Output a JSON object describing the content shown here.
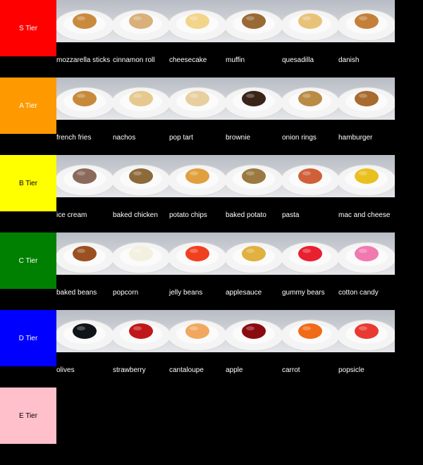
{
  "tiers": [
    {
      "label": "S Tier",
      "color": "#ff0000",
      "items": [
        {
          "name": "mozzarella sticks",
          "icon": "mozzarella-sticks-icon",
          "food": "#c98a3e"
        },
        {
          "name": "cinnamon roll",
          "icon": "cinnamon-roll-icon",
          "food": "#d9b07a"
        },
        {
          "name": "cheesecake",
          "icon": "cheesecake-icon",
          "food": "#f2d58a"
        },
        {
          "name": "muffin",
          "icon": "muffin-icon",
          "food": "#9a6a34"
        },
        {
          "name": "quesadilla",
          "icon": "quesadilla-icon",
          "food": "#e9c27a"
        },
        {
          "name": "danish",
          "icon": "danish-icon",
          "food": "#c4803a"
        }
      ]
    },
    {
      "label": "A Tier",
      "color": "#ff9900",
      "items": [
        {
          "name": "french fries",
          "icon": "french-fries-icon",
          "food": "#c78a3a"
        },
        {
          "name": "nachos",
          "icon": "nachos-icon",
          "food": "#e6c98e"
        },
        {
          "name": "pop tart",
          "icon": "pop-tart-icon",
          "food": "#e8cfa0"
        },
        {
          "name": "brownie",
          "icon": "brownie-icon",
          "food": "#3a2418"
        },
        {
          "name": "onion rings",
          "icon": "onion-rings-icon",
          "food": "#b98b45"
        },
        {
          "name": "hamburger",
          "icon": "hamburger-icon",
          "food": "#a86a2e"
        }
      ]
    },
    {
      "label": "B Tier",
      "color": "#ffff00",
      "items": [
        {
          "name": "ice cream",
          "icon": "ice-cream-icon",
          "food": "#8a6a5a"
        },
        {
          "name": "baked chicken",
          "icon": "baked-chicken-icon",
          "food": "#8c6a3a"
        },
        {
          "name": "potato chips",
          "icon": "potato-chips-icon",
          "food": "#e0a040"
        },
        {
          "name": "baked potato",
          "icon": "baked-potato-icon",
          "food": "#9a7a40"
        },
        {
          "name": "pasta",
          "icon": "pasta-icon",
          "food": "#d0603a"
        },
        {
          "name": "mac and cheese",
          "icon": "mac-and-cheese-icon",
          "food": "#e8c020"
        }
      ]
    },
    {
      "label": "C Tier",
      "color": "#008000",
      "items": [
        {
          "name": "baked beans",
          "icon": "baked-beans-icon",
          "food": "#9a5020"
        },
        {
          "name": "popcorn",
          "icon": "popcorn-icon",
          "food": "#f4f0e0"
        },
        {
          "name": "jelly beans",
          "icon": "jelly-beans-icon",
          "food": "#f04020"
        },
        {
          "name": "applesauce",
          "icon": "applesauce-icon",
          "food": "#e0b040"
        },
        {
          "name": "gummy bears",
          "icon": "gummy-bears-icon",
          "food": "#e82030"
        },
        {
          "name": "cotton candy",
          "icon": "cotton-candy-icon",
          "food": "#f07ab0"
        }
      ]
    },
    {
      "label": "D Tier",
      "color": "#0000ff",
      "items": [
        {
          "name": "olives",
          "icon": "olives-icon",
          "food": "#101418"
        },
        {
          "name": "strawberry",
          "icon": "strawberry-icon",
          "food": "#c01818"
        },
        {
          "name": "cantaloupe",
          "icon": "cantaloupe-icon",
          "food": "#f0a860"
        },
        {
          "name": "apple",
          "icon": "apple-icon",
          "food": "#8a0a10"
        },
        {
          "name": "carrot",
          "icon": "carrot-icon",
          "food": "#f06a18"
        },
        {
          "name": "popsicle",
          "icon": "popsicle-icon",
          "food": "#e83a30"
        }
      ]
    },
    {
      "label": "E Tier",
      "color": "#ffc0cb",
      "items": []
    }
  ]
}
